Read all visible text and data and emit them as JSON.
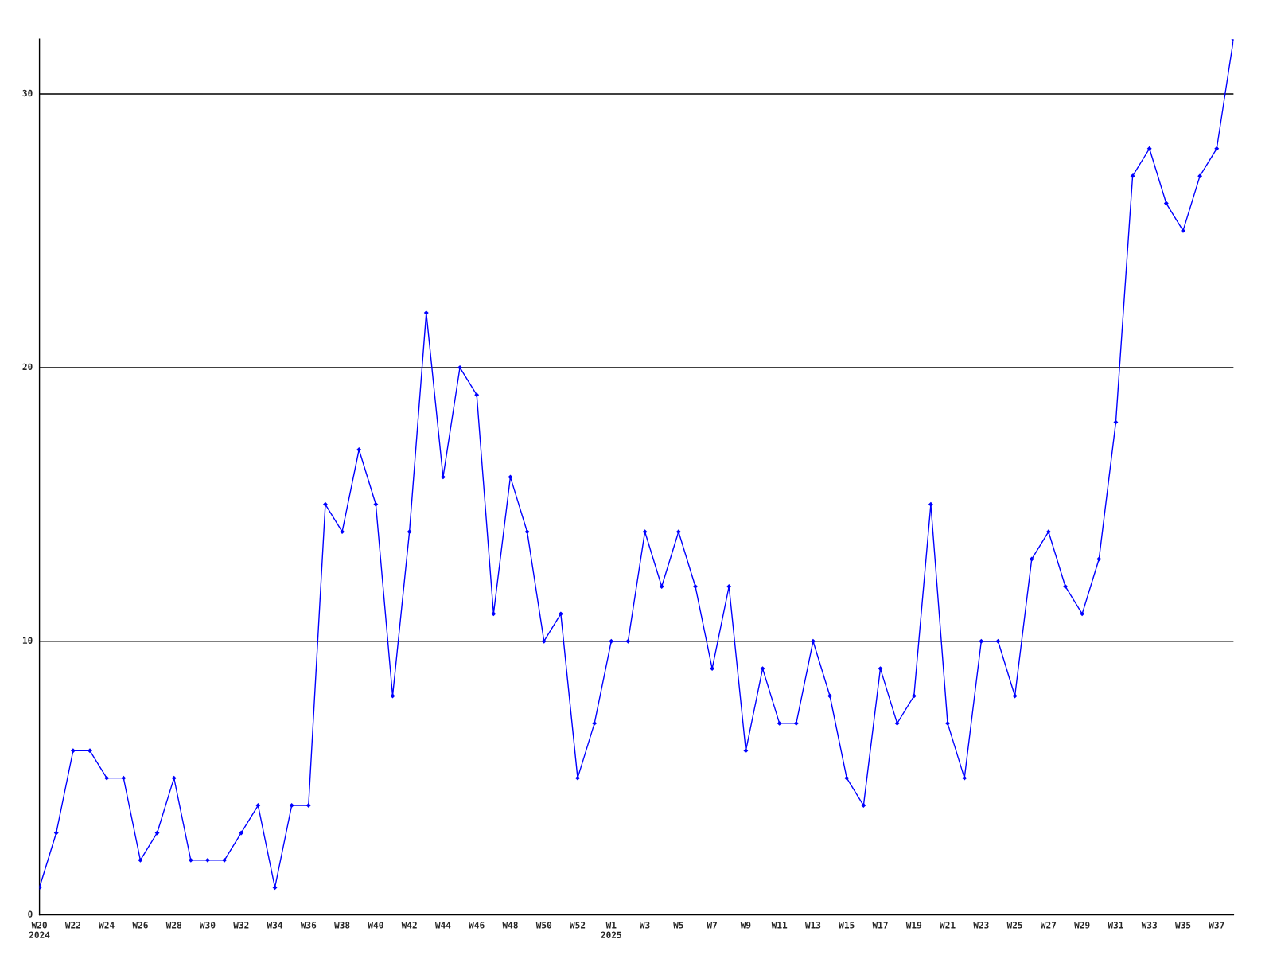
{
  "chart_data": {
    "type": "line",
    "categories": [
      "W20\n2024",
      null,
      "W22",
      null,
      "W24",
      null,
      "W26",
      null,
      "W28",
      null,
      "W30",
      null,
      "W32",
      null,
      "W34",
      null,
      "W36",
      null,
      "W38",
      null,
      "W40",
      null,
      "W42",
      null,
      "W44",
      null,
      "W46",
      null,
      "W48",
      null,
      "W50",
      null,
      "W52",
      null,
      "W1\n2025",
      null,
      "W3",
      null,
      "W5",
      null,
      "W7",
      null,
      "W9",
      null,
      "W11",
      null,
      "W13",
      null,
      "W15",
      null,
      "W17",
      null,
      "W19",
      null,
      "W21",
      null,
      "W23",
      null,
      "W25",
      null,
      "W27",
      null,
      "W29",
      null,
      "W31",
      null,
      "W33",
      null,
      "W35",
      null,
      "W37",
      null
    ],
    "series": [
      {
        "color": "#0000ff",
        "values": [
          1,
          3,
          6,
          6,
          5,
          5,
          2,
          3,
          5,
          2,
          2,
          2,
          3,
          4,
          1,
          4,
          4,
          15,
          14,
          17,
          15,
          8,
          14,
          22,
          16,
          20,
          19,
          11,
          16,
          14,
          10,
          11,
          5,
          7,
          10,
          10,
          14,
          12,
          14,
          12,
          9,
          12,
          6,
          9,
          7,
          7,
          10,
          8,
          5,
          4,
          9,
          7,
          8,
          15,
          7,
          5,
          10,
          10,
          8,
          13,
          14,
          12,
          11,
          13,
          18,
          27,
          28,
          26,
          25,
          27,
          28,
          32
        ]
      }
    ],
    "ylim": [
      0,
      32
    ],
    "yticks": [
      0,
      10,
      20,
      30
    ],
    "grid": "y",
    "marker": "diamond",
    "line_style": "solid"
  }
}
